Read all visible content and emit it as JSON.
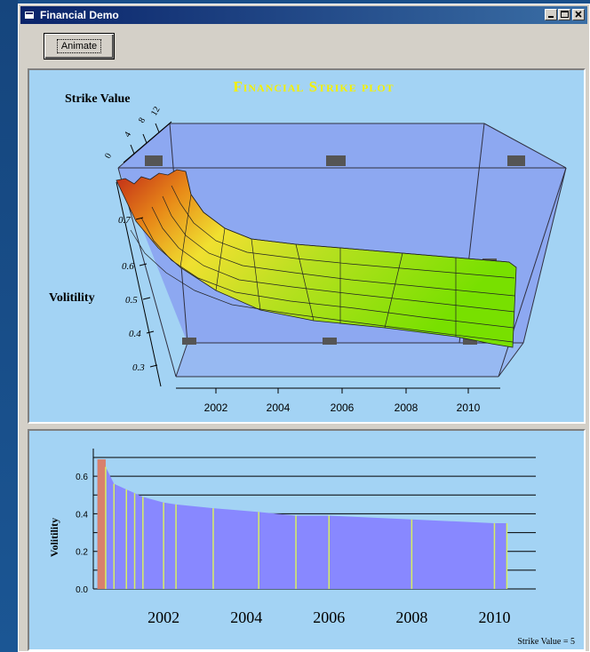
{
  "window": {
    "title": "Financial Demo",
    "controls": [
      "minimize-icon",
      "maximize-icon",
      "close-icon"
    ]
  },
  "toolbar": {
    "animate_label": "Animate"
  },
  "plot3d": {
    "title": "Financial Strike plot",
    "strike_axis_label": "Strike Value",
    "strike_ticks": [
      "0",
      "4",
      "8",
      "12"
    ],
    "vol_axis_label": "Volitility",
    "vol_ticks": [
      "0.7",
      "0.6",
      "0.5",
      "0.4",
      "0.3"
    ],
    "year_ticks": [
      "2002",
      "2004",
      "2006",
      "2008",
      "2010"
    ],
    "colors": {
      "title": "#f4f000",
      "surface_high": "#c83018",
      "surface_low": "#7ce800",
      "box": "#8aa0f0"
    }
  },
  "chart_data": {
    "type": "area",
    "ylabel": "Volitility",
    "xlabel": "",
    "x": [
      2000.4,
      2000.6,
      2000.8,
      2001.1,
      2001.3,
      2001.5,
      2002.0,
      2002.3,
      2003.2,
      2004.3,
      2005.2,
      2006.0,
      2008.0,
      2010.0,
      2010.3
    ],
    "y": [
      0.69,
      0.65,
      0.56,
      0.53,
      0.51,
      0.49,
      0.46,
      0.45,
      0.43,
      0.41,
      0.39,
      0.39,
      0.37,
      0.35,
      0.35
    ],
    "xlim": [
      2000.3,
      2011.0
    ],
    "ylim": [
      0.0,
      0.7
    ],
    "y_ticks": [
      "0.0",
      "0.2",
      "0.4",
      "0.6"
    ],
    "x_ticks": [
      "2002",
      "2004",
      "2006",
      "2008",
      "2010"
    ],
    "annotation": "Strike Value = 5",
    "colors": {
      "fill": "#8888ff",
      "marker": "#d8f060"
    }
  }
}
